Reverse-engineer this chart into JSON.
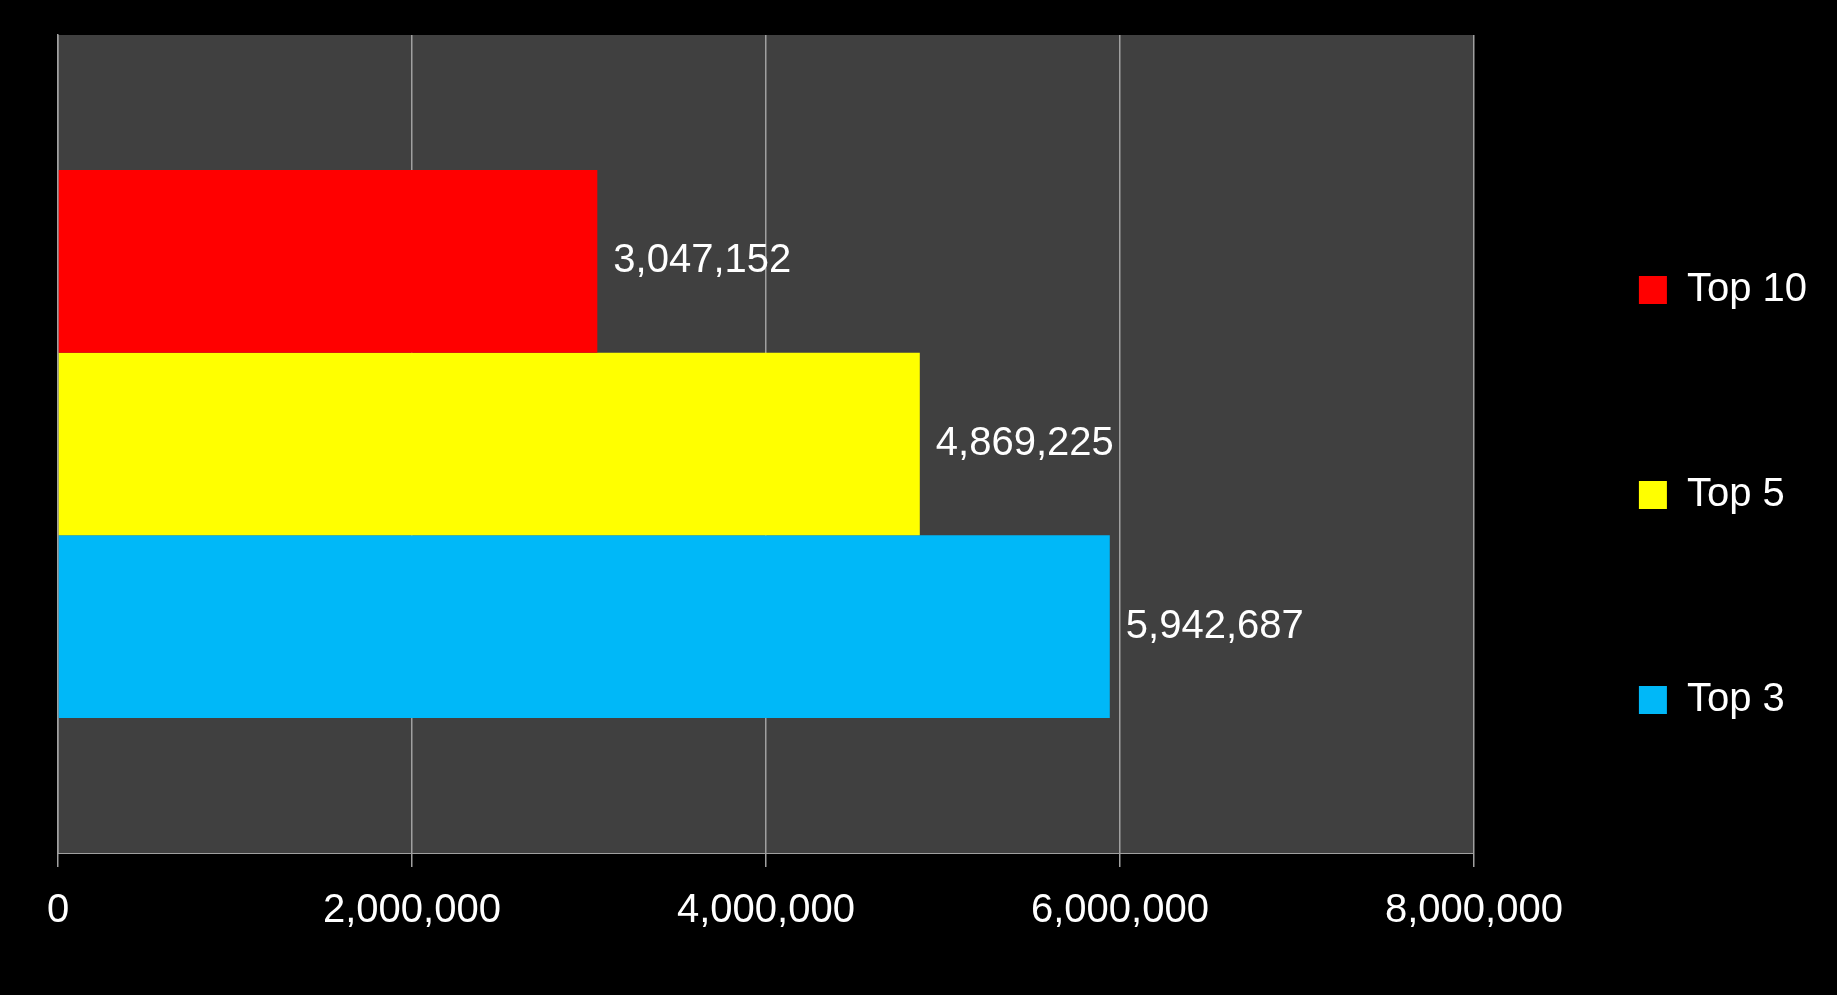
{
  "chart_data": {
    "type": "bar",
    "orientation": "horizontal",
    "categories": [
      null
    ],
    "series": [
      {
        "name": "Top 10",
        "color": "#ff0000",
        "values": [
          3047152
        ],
        "value_labels": [
          "3,047,152"
        ]
      },
      {
        "name": "Top 5",
        "color": "#ffff00",
        "values": [
          4869225
        ],
        "value_labels": [
          "4,869,225"
        ]
      },
      {
        "name": "Top 3",
        "color": "#00b8f8",
        "values": [
          5942687
        ],
        "value_labels": [
          "5,942,687"
        ]
      }
    ],
    "xlim": [
      0,
      8000000
    ],
    "xticks": [
      {
        "value": 0,
        "label": "0"
      },
      {
        "value": 2000000,
        "label": "2,000,000"
      },
      {
        "value": 4000000,
        "label": "4,000,000"
      },
      {
        "value": 6000000,
        "label": "6,000,000"
      },
      {
        "value": 8000000,
        "label": "8,000,000"
      }
    ],
    "grid": "x",
    "legend": "right",
    "tick_labels": "x"
  }
}
